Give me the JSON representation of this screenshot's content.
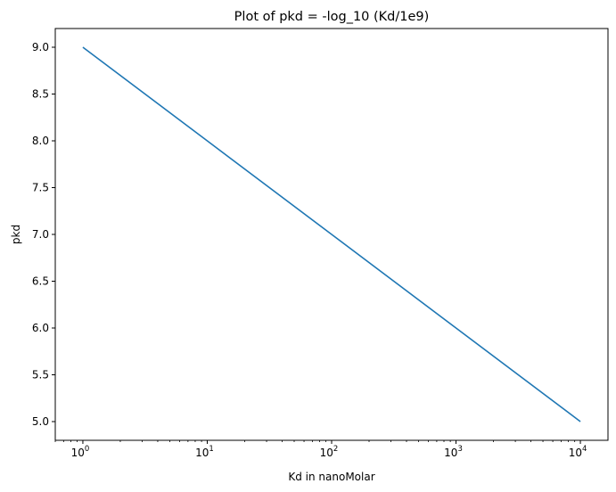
{
  "chart_data": {
    "type": "line",
    "title": "Plot of pkd = -log_10 (Kd/1e9)",
    "xlabel": "Kd in nanoMolar",
    "ylabel": "pkd",
    "xscale": "log",
    "xlim": [
      0.6,
      16667
    ],
    "ylim": [
      4.8,
      9.2
    ],
    "grid": false,
    "x_ticks": [
      {
        "value": 1,
        "base": "10",
        "exp": "0"
      },
      {
        "value": 10,
        "base": "10",
        "exp": "1"
      },
      {
        "value": 100,
        "base": "10",
        "exp": "2"
      },
      {
        "value": 1000,
        "base": "10",
        "exp": "3"
      },
      {
        "value": 10000,
        "base": "10",
        "exp": "4"
      }
    ],
    "y_ticks": [
      "5.0",
      "5.5",
      "6.0",
      "6.5",
      "7.0",
      "7.5",
      "8.0",
      "8.5",
      "9.0"
    ],
    "series": [
      {
        "color": "#1f77b4",
        "x": [
          1,
          10,
          100,
          1000,
          10000
        ],
        "y": [
          9.0,
          8.0,
          7.0,
          6.0,
          5.0
        ]
      }
    ]
  }
}
